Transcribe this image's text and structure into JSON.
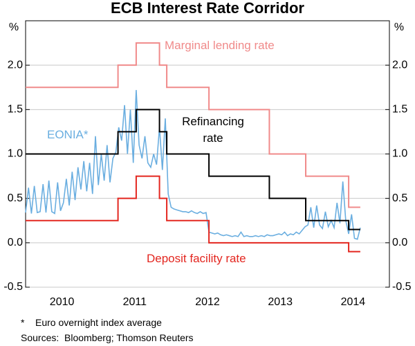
{
  "chart_data": {
    "type": "line",
    "title": "ECB Interest Rate Corridor",
    "y_unit": "%",
    "y2_unit": "%",
    "xlim": [
      2010,
      2015
    ],
    "xticks": [
      {
        "value": 2010.5,
        "label": "2010"
      },
      {
        "value": 2011.5,
        "label": "2011"
      },
      {
        "value": 2012.5,
        "label": "2012"
      },
      {
        "value": 2013.5,
        "label": "2013"
      },
      {
        "value": 2014.5,
        "label": "2014"
      }
    ],
    "ylim": [
      -0.5,
      2.5
    ],
    "yticks": [
      -0.5,
      {
        "value": 0,
        "label": "0.0"
      },
      0.5,
      {
        "value": 1,
        "label": "1.0"
      },
      1.5,
      {
        "value": 2,
        "label": "2.0"
      }
    ],
    "y2lim": [
      -0.5,
      2.5
    ],
    "y2ticks": [
      -0.5,
      {
        "value": 0,
        "label": "0.0"
      },
      0.5,
      {
        "value": 1,
        "label": "1.0"
      },
      1.5,
      {
        "value": 2,
        "label": "2.0"
      }
    ],
    "grid": true,
    "series": [
      {
        "name": "Marginal lending rate",
        "color": "#f08a8a",
        "x": [
          2010,
          2011.27,
          2011.27,
          2011.52,
          2011.52,
          2011.84,
          2011.84,
          2011.94,
          2011.94,
          2012.52,
          2012.52,
          2013.35,
          2013.35,
          2013.85,
          2013.85,
          2014.44,
          2014.44,
          2014.6
        ],
        "values": [
          1.75,
          1.75,
          2,
          2,
          2.25,
          2.25,
          2,
          2,
          1.75,
          1.75,
          1.5,
          1.5,
          1,
          1,
          0.75,
          0.75,
          0.4,
          0.4
        ]
      },
      {
        "name": "Refinancing rate",
        "color": "#000000",
        "x": [
          2010,
          2011.27,
          2011.27,
          2011.52,
          2011.52,
          2011.84,
          2011.84,
          2011.94,
          2011.94,
          2012.52,
          2012.52,
          2013.35,
          2013.35,
          2013.85,
          2013.85,
          2014.44,
          2014.44,
          2014.6
        ],
        "values": [
          1,
          1,
          1.25,
          1.25,
          1.5,
          1.5,
          1.25,
          1.25,
          1,
          1,
          0.75,
          0.75,
          0.5,
          0.5,
          0.25,
          0.25,
          0.15,
          0.15
        ]
      },
      {
        "name": "Deposit facility rate",
        "color": "#e3261f",
        "x": [
          2010,
          2011.27,
          2011.27,
          2011.52,
          2011.52,
          2011.84,
          2011.84,
          2011.94,
          2011.94,
          2012.52,
          2012.52,
          2014.44,
          2014.44,
          2014.6
        ],
        "values": [
          0.25,
          0.25,
          0.5,
          0.5,
          0.75,
          0.75,
          0.5,
          0.5,
          0.25,
          0.25,
          0,
          0,
          -0.1,
          -0.1
        ]
      },
      {
        "name": "EONIA*",
        "color": "#6aaee0",
        "x": [
          2010,
          2010.04,
          2010.08,
          2010.12,
          2010.16,
          2010.2,
          2010.24,
          2010.28,
          2010.32,
          2010.36,
          2010.4,
          2010.44,
          2010.48,
          2010.52,
          2010.56,
          2010.6,
          2010.64,
          2010.68,
          2010.72,
          2010.76,
          2010.8,
          2010.84,
          2010.88,
          2010.92,
          2010.96,
          2011,
          2011.04,
          2011.08,
          2011.12,
          2011.16,
          2011.2,
          2011.24,
          2011.28,
          2011.32,
          2011.36,
          2011.4,
          2011.44,
          2011.48,
          2011.52,
          2011.56,
          2011.6,
          2011.64,
          2011.68,
          2011.72,
          2011.76,
          2011.8,
          2011.84,
          2011.88,
          2011.92,
          2011.96,
          2012,
          2012.04,
          2012.08,
          2012.12,
          2012.16,
          2012.2,
          2012.24,
          2012.28,
          2012.32,
          2012.36,
          2012.4,
          2012.44,
          2012.48,
          2012.52,
          2012.56,
          2012.6,
          2012.64,
          2012.68,
          2012.72,
          2012.76,
          2012.8,
          2012.84,
          2012.88,
          2012.92,
          2012.96,
          2013,
          2013.04,
          2013.08,
          2013.12,
          2013.16,
          2013.2,
          2013.24,
          2013.28,
          2013.32,
          2013.36,
          2013.4,
          2013.44,
          2013.48,
          2013.52,
          2013.56,
          2013.6,
          2013.64,
          2013.68,
          2013.72,
          2013.76,
          2013.8,
          2013.84,
          2013.88,
          2013.92,
          2013.96,
          2014,
          2014.04,
          2014.08,
          2014.12,
          2014.16,
          2014.2,
          2014.24,
          2014.28,
          2014.32,
          2014.36,
          2014.4,
          2014.44,
          2014.48,
          2014.52,
          2014.56,
          2014.6
        ],
        "values": [
          0.34,
          0.62,
          0.33,
          0.64,
          0.34,
          0.35,
          0.66,
          0.34,
          0.7,
          0.35,
          0.33,
          0.68,
          0.36,
          0.45,
          0.72,
          0.42,
          0.8,
          0.48,
          0.85,
          0.6,
          0.92,
          0.58,
          0.9,
          0.55,
          1.2,
          0.65,
          1,
          0.7,
          1.1,
          0.68,
          0.95,
          1.02,
          1.3,
          1.15,
          1.55,
          1,
          1.5,
          0.9,
          1.72,
          1.1,
          0.95,
          1.2,
          0.9,
          0.85,
          1,
          0.88,
          1.3,
          0.82,
          1.4,
          0.55,
          0.4,
          0.38,
          0.37,
          0.36,
          0.35,
          0.35,
          0.34,
          0.36,
          0.34,
          0.33,
          0.35,
          0.33,
          0.34,
          0.12,
          0.11,
          0.1,
          0.11,
          0.09,
          0.08,
          0.09,
          0.08,
          0.07,
          0.08,
          0.07,
          0.12,
          0.07,
          0.08,
          0.07,
          0.07,
          0.08,
          0.07,
          0.08,
          0.07,
          0.09,
          0.08,
          0.08,
          0.09,
          0.1,
          0.09,
          0.12,
          0.08,
          0.1,
          0.09,
          0.12,
          0.1,
          0.14,
          0.18,
          0.2,
          0.4,
          0.17,
          0.42,
          0.2,
          0.16,
          0.35,
          0.18,
          0.25,
          0.17,
          0.45,
          0.22,
          0.69,
          0.25,
          0.1,
          0.32,
          0.05,
          0.04,
          0.17
        ]
      }
    ],
    "notes": [
      "*    Euro overnight index average",
      "Sources:  Bloomberg; Thomson Reuters"
    ]
  }
}
